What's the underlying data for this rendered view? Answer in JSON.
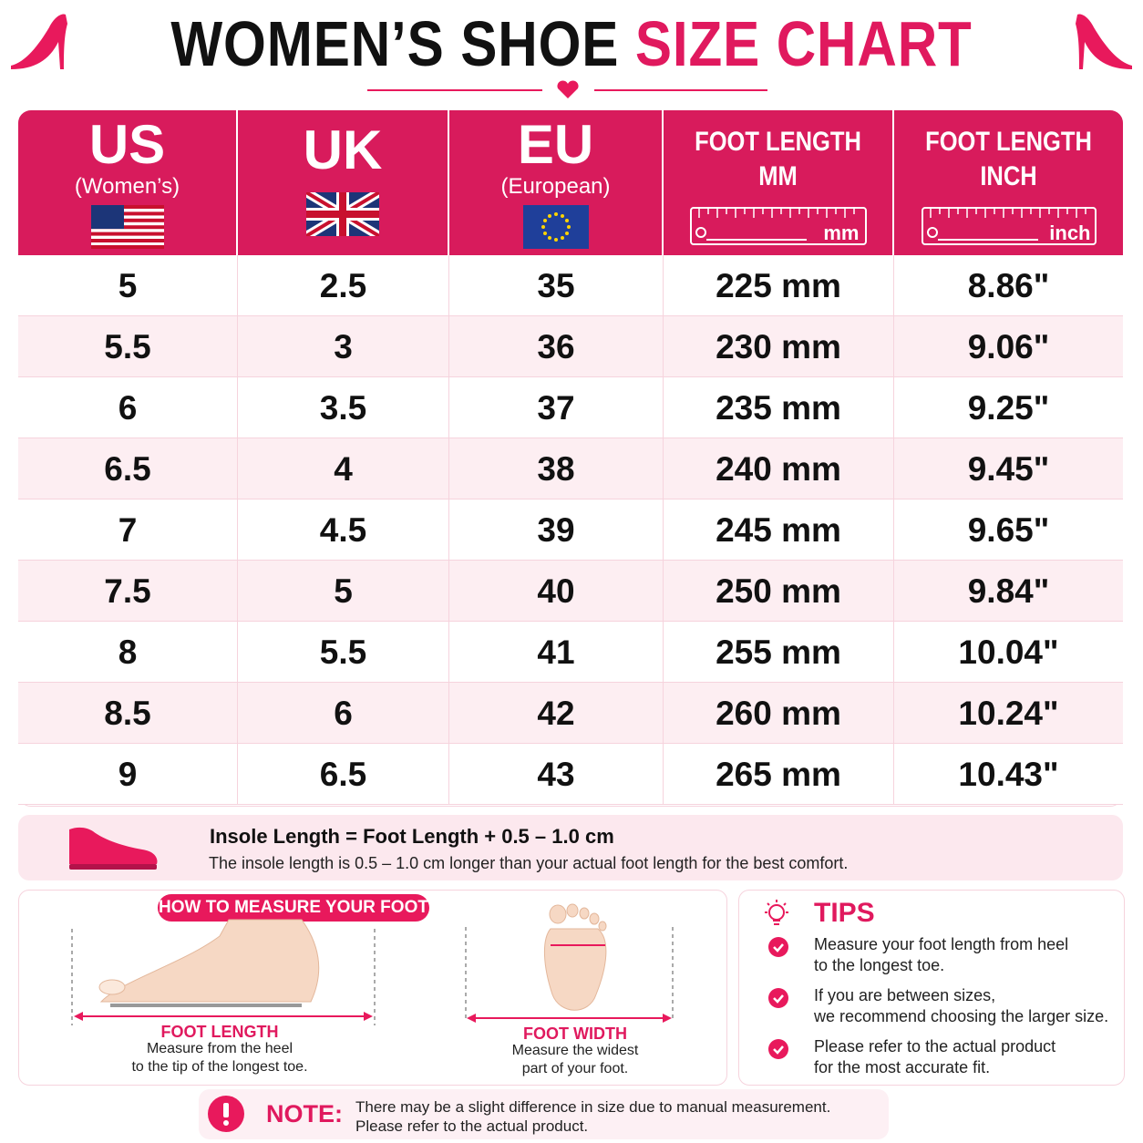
{
  "header": {
    "title_dark": "WOMEN’S SHOE",
    "title_accent": "SIZE CHART"
  },
  "table": {
    "columns": [
      {
        "title": [
          "US"
        ],
        "subtitle": "(Women’s)"
      },
      {
        "title": [
          "UK"
        ]
      },
      {
        "title": [
          "EU"
        ],
        "subtitle": "(European)"
      },
      {
        "title": [
          "FOOT LENGTH",
          "MM"
        ],
        "ruler_unit": "mm"
      },
      {
        "title": [
          "FOOT LENGTH",
          "INCH"
        ],
        "ruler_unit": "inch"
      }
    ],
    "rows": [
      [
        "5",
        "2.5",
        "35",
        "225 mm",
        "8.86\""
      ],
      [
        "5.5",
        "3",
        "36",
        "230 mm",
        "9.06\""
      ],
      [
        "6",
        "3.5",
        "37",
        "235 mm",
        "9.25\""
      ],
      [
        "6.5",
        "4",
        "38",
        "240 mm",
        "9.45\""
      ],
      [
        "7",
        "4.5",
        "39",
        "245 mm",
        "9.65\""
      ],
      [
        "7.5",
        "5",
        "40",
        "250 mm",
        "9.84\""
      ],
      [
        "8",
        "5.5",
        "41",
        "255 mm",
        "10.04\""
      ],
      [
        "8.5",
        "6",
        "42",
        "260 mm",
        "10.24\""
      ],
      [
        "9",
        "6.5",
        "43",
        "265 mm",
        "10.43\""
      ]
    ]
  },
  "insole": {
    "title": "Insole Length = Foot Length + 0.5 – 1.0 cm",
    "text": "The insole length is 0.5 – 1.0 cm longer than your actual foot length for the best comfort."
  },
  "measure": {
    "badge": "HOW TO MEASURE YOUR FOOT",
    "length": {
      "label": "FOOT LENGTH",
      "lines": [
        "Measure from the heel",
        "to the tip of the longest toe."
      ]
    },
    "width": {
      "label": "FOOT WIDTH",
      "lines": [
        "Measure the widest",
        "part of your foot."
      ]
    }
  },
  "tips": {
    "title": "TIPS",
    "items": [
      [
        "Measure your foot length from heel",
        "to the longest toe."
      ],
      [
        "If you are between sizes,",
        "we recommend choosing the larger size."
      ],
      [
        "Please refer to the actual product",
        "for the most accurate fit."
      ]
    ]
  },
  "note": {
    "label": "NOTE:",
    "lines": [
      "There may be a slight difference in size due to manual measurement.",
      "Please refer to the actual product."
    ]
  }
}
